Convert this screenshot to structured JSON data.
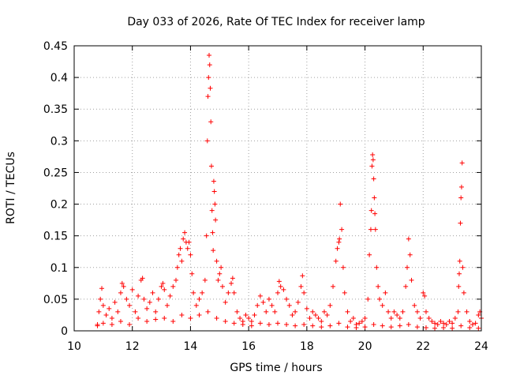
{
  "chart_data": {
    "type": "scatter",
    "title": "Day 033 of 2026, Rate Of TEC Index for receiver lamp",
    "xlabel": "GPS time / hours",
    "ylabel": "ROTI / TECUs",
    "xlim": [
      10,
      24
    ],
    "ylim": [
      0,
      0.45
    ],
    "x_ticks": [
      10,
      12,
      14,
      16,
      18,
      20,
      22,
      24
    ],
    "y_ticks": [
      0,
      0.05,
      0.1,
      0.15,
      0.2,
      0.25,
      0.3,
      0.35,
      0.4,
      0.45
    ],
    "x_tick_labels": [
      "10",
      "12",
      "14",
      "16",
      "18",
      "20",
      "22",
      "24"
    ],
    "y_tick_labels": [
      "0",
      "0.05",
      "0.1",
      "0.15",
      "0.2",
      "0.25",
      "0.3",
      "0.35",
      "0.4",
      "0.45"
    ],
    "grid": true,
    "marker": "+",
    "series_color": "#ff0000",
    "series": [
      {
        "name": "ROTI",
        "points": [
          [
            10.8,
            0.01
          ],
          [
            10.85,
            0.03
          ],
          [
            10.9,
            0.05
          ],
          [
            10.95,
            0.067
          ],
          [
            11.0,
            0.04
          ],
          [
            11.1,
            0.025
          ],
          [
            11.2,
            0.035
          ],
          [
            11.3,
            0.02
          ],
          [
            11.4,
            0.045
          ],
          [
            11.5,
            0.03
          ],
          [
            11.6,
            0.06
          ],
          [
            11.65,
            0.075
          ],
          [
            11.7,
            0.07
          ],
          [
            11.8,
            0.05
          ],
          [
            11.9,
            0.04
          ],
          [
            12.0,
            0.065
          ],
          [
            12.1,
            0.03
          ],
          [
            12.2,
            0.055
          ],
          [
            12.3,
            0.08
          ],
          [
            12.35,
            0.083
          ],
          [
            12.4,
            0.05
          ],
          [
            12.5,
            0.035
          ],
          [
            12.6,
            0.045
          ],
          [
            12.7,
            0.06
          ],
          [
            12.8,
            0.03
          ],
          [
            12.9,
            0.05
          ],
          [
            13.0,
            0.07
          ],
          [
            13.05,
            0.075
          ],
          [
            13.1,
            0.065
          ],
          [
            13.2,
            0.04
          ],
          [
            13.3,
            0.055
          ],
          [
            13.4,
            0.07
          ],
          [
            13.5,
            0.08
          ],
          [
            13.55,
            0.1
          ],
          [
            13.6,
            0.12
          ],
          [
            13.65,
            0.13
          ],
          [
            13.7,
            0.11
          ],
          [
            13.75,
            0.145
          ],
          [
            13.8,
            0.155
          ],
          [
            13.85,
            0.14
          ],
          [
            13.9,
            0.13
          ],
          [
            13.95,
            0.14
          ],
          [
            14.0,
            0.12
          ],
          [
            14.05,
            0.09
          ],
          [
            14.1,
            0.06
          ],
          [
            14.2,
            0.04
          ],
          [
            14.3,
            0.05
          ],
          [
            14.4,
            0.06
          ],
          [
            14.5,
            0.08
          ],
          [
            14.55,
            0.15
          ],
          [
            14.58,
            0.3
          ],
          [
            14.6,
            0.37
          ],
          [
            14.62,
            0.4
          ],
          [
            14.64,
            0.435
          ],
          [
            14.66,
            0.42
          ],
          [
            14.68,
            0.383
          ],
          [
            14.7,
            0.33
          ],
          [
            14.72,
            0.26
          ],
          [
            14.74,
            0.19
          ],
          [
            14.76,
            0.155
          ],
          [
            14.78,
            0.127
          ],
          [
            14.8,
            0.236
          ],
          [
            14.82,
            0.22
          ],
          [
            14.84,
            0.2
          ],
          [
            14.86,
            0.175
          ],
          [
            14.9,
            0.11
          ],
          [
            14.95,
            0.08
          ],
          [
            15.0,
            0.09
          ],
          [
            15.05,
            0.1
          ],
          [
            15.1,
            0.07
          ],
          [
            15.2,
            0.045
          ],
          [
            15.3,
            0.06
          ],
          [
            15.4,
            0.075
          ],
          [
            15.45,
            0.083
          ],
          [
            15.5,
            0.06
          ],
          [
            15.6,
            0.03
          ],
          [
            15.7,
            0.02
          ],
          [
            15.8,
            0.015
          ],
          [
            15.9,
            0.025
          ],
          [
            16.0,
            0.02
          ],
          [
            16.1,
            0.015
          ],
          [
            16.2,
            0.025
          ],
          [
            16.3,
            0.04
          ],
          [
            16.4,
            0.055
          ],
          [
            16.5,
            0.045
          ],
          [
            16.6,
            0.03
          ],
          [
            16.7,
            0.05
          ],
          [
            16.8,
            0.04
          ],
          [
            16.9,
            0.03
          ],
          [
            17.0,
            0.06
          ],
          [
            17.05,
            0.078
          ],
          [
            17.1,
            0.07
          ],
          [
            17.2,
            0.065
          ],
          [
            17.3,
            0.05
          ],
          [
            17.4,
            0.04
          ],
          [
            17.5,
            0.025
          ],
          [
            17.6,
            0.03
          ],
          [
            17.7,
            0.045
          ],
          [
            17.8,
            0.07
          ],
          [
            17.85,
            0.087
          ],
          [
            17.9,
            0.06
          ],
          [
            18.0,
            0.035
          ],
          [
            18.1,
            0.02
          ],
          [
            18.2,
            0.03
          ],
          [
            18.3,
            0.025
          ],
          [
            18.4,
            0.02
          ],
          [
            18.5,
            0.015
          ],
          [
            18.6,
            0.03
          ],
          [
            18.7,
            0.025
          ],
          [
            18.8,
            0.04
          ],
          [
            18.9,
            0.07
          ],
          [
            19.0,
            0.11
          ],
          [
            19.05,
            0.13
          ],
          [
            19.1,
            0.14
          ],
          [
            19.12,
            0.145
          ],
          [
            19.15,
            0.2
          ],
          [
            19.2,
            0.16
          ],
          [
            19.25,
            0.1
          ],
          [
            19.3,
            0.06
          ],
          [
            19.4,
            0.03
          ],
          [
            19.5,
            0.015
          ],
          [
            19.6,
            0.02
          ],
          [
            19.7,
            0.01
          ],
          [
            19.8,
            0.012
          ],
          [
            19.9,
            0.015
          ],
          [
            20.0,
            0.02
          ],
          [
            20.1,
            0.05
          ],
          [
            20.15,
            0.12
          ],
          [
            20.2,
            0.16
          ],
          [
            20.22,
            0.19
          ],
          [
            20.24,
            0.26
          ],
          [
            20.26,
            0.278
          ],
          [
            20.28,
            0.27
          ],
          [
            20.3,
            0.24
          ],
          [
            20.32,
            0.21
          ],
          [
            20.34,
            0.185
          ],
          [
            20.36,
            0.16
          ],
          [
            20.4,
            0.1
          ],
          [
            20.45,
            0.07
          ],
          [
            20.5,
            0.05
          ],
          [
            20.6,
            0.04
          ],
          [
            20.7,
            0.06
          ],
          [
            20.8,
            0.03
          ],
          [
            20.9,
            0.02
          ],
          [
            21.0,
            0.03
          ],
          [
            21.1,
            0.025
          ],
          [
            21.2,
            0.02
          ],
          [
            21.3,
            0.03
          ],
          [
            21.4,
            0.07
          ],
          [
            21.45,
            0.1
          ],
          [
            21.5,
            0.145
          ],
          [
            21.55,
            0.12
          ],
          [
            21.6,
            0.08
          ],
          [
            21.7,
            0.04
          ],
          [
            21.8,
            0.03
          ],
          [
            21.9,
            0.02
          ],
          [
            22.0,
            0.06
          ],
          [
            22.05,
            0.055
          ],
          [
            22.1,
            0.03
          ],
          [
            22.2,
            0.02
          ],
          [
            22.3,
            0.015
          ],
          [
            22.4,
            0.012
          ],
          [
            22.5,
            0.01
          ],
          [
            22.6,
            0.015
          ],
          [
            22.7,
            0.012
          ],
          [
            22.8,
            0.01
          ],
          [
            22.9,
            0.015
          ],
          [
            23.0,
            0.012
          ],
          [
            23.1,
            0.02
          ],
          [
            23.2,
            0.03
          ],
          [
            23.22,
            0.07
          ],
          [
            23.24,
            0.09
          ],
          [
            23.26,
            0.11
          ],
          [
            23.28,
            0.17
          ],
          [
            23.3,
            0.21
          ],
          [
            23.32,
            0.227
          ],
          [
            23.34,
            0.265
          ],
          [
            23.36,
            0.1
          ],
          [
            23.4,
            0.06
          ],
          [
            23.5,
            0.03
          ],
          [
            23.6,
            0.015
          ],
          [
            23.7,
            0.01
          ],
          [
            23.8,
            0.012
          ],
          [
            23.9,
            0.025
          ],
          [
            23.95,
            0.03
          ],
          [
            24.0,
            0.02
          ]
        ],
        "baseline_scatter": [
          [
            10.8,
            0.008
          ],
          [
            11.0,
            0.012
          ],
          [
            11.3,
            0.01
          ],
          [
            11.6,
            0.015
          ],
          [
            11.9,
            0.01
          ],
          [
            12.2,
            0.02
          ],
          [
            12.5,
            0.015
          ],
          [
            12.8,
            0.018
          ],
          [
            13.1,
            0.02
          ],
          [
            13.4,
            0.015
          ],
          [
            13.7,
            0.025
          ],
          [
            14.0,
            0.02
          ],
          [
            14.3,
            0.025
          ],
          [
            14.6,
            0.03
          ],
          [
            14.9,
            0.02
          ],
          [
            15.2,
            0.015
          ],
          [
            15.5,
            0.012
          ],
          [
            15.8,
            0.01
          ],
          [
            16.1,
            0.008
          ],
          [
            16.4,
            0.012
          ],
          [
            16.7,
            0.01
          ],
          [
            17.0,
            0.012
          ],
          [
            17.3,
            0.01
          ],
          [
            17.6,
            0.008
          ],
          [
            17.9,
            0.01
          ],
          [
            18.2,
            0.008
          ],
          [
            18.5,
            0.006
          ],
          [
            18.8,
            0.008
          ],
          [
            19.1,
            0.012
          ],
          [
            19.4,
            0.006
          ],
          [
            19.7,
            0.005
          ],
          [
            20.0,
            0.006
          ],
          [
            20.3,
            0.01
          ],
          [
            20.6,
            0.008
          ],
          [
            20.9,
            0.006
          ],
          [
            21.2,
            0.008
          ],
          [
            21.5,
            0.01
          ],
          [
            21.8,
            0.006
          ],
          [
            22.1,
            0.005
          ],
          [
            22.4,
            0.004
          ],
          [
            22.7,
            0.005
          ],
          [
            23.0,
            0.004
          ],
          [
            23.3,
            0.008
          ],
          [
            23.6,
            0.005
          ],
          [
            23.9,
            0.004
          ]
        ]
      }
    ]
  }
}
